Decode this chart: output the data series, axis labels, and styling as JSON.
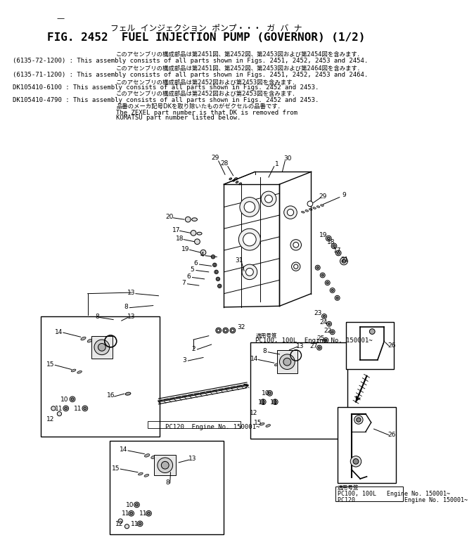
{
  "bg_color": "#ffffff",
  "dash": "—",
  "title_jp": "フェル  インジェクション  ポンプ・・・  ガ  バ  ナ",
  "title_en": "FIG. 2452  FUEL INJECTION PUMP (GOVERNOR) (1/2)",
  "note1_jp": "このアセンブリの構成部品は第2451図、第2452図、第2453図および第2454図を含みます．",
  "note1_en": "(6135-72-1200) : This assembly consists of all parts shown in Figs. 2451, 2452, 2453 and 2454.",
  "note2_jp": "このアセンブリの構成部品は第2451図、第2452図、第2453図および第2464図を含みます．",
  "note2_en": "(6135-71-1200) : This assembly consists of all parts shown in Figs. 2451, 2452, 2453 and 2464.",
  "note3_jp": "このアセンブリの構成部品は第2452図および第2453図を含みます．",
  "note3_en": "DK105410-6100 : This assembly consists of all parts shown in Figs. 2452 and 2453.",
  "note4_jp": "このアセンブリの構成部品は第2452図および第2453図を含みます．",
  "note4_en": "DK105410-4790 : This assembly consists of all parts shown in Figs. 2452 and 2453.",
  "note5_jp": "品番のメーカ記号DKを取り除いたものがゼクセルの品番です．",
  "note5_en1": "The ZEXEL part number is that DK is removed from",
  "note5_en2": "KOMATSU part number listed below.",
  "pc120_label": "PC120  Engine No. 150001~",
  "pc100_label": "適用号笪\nPC100, 100L  Engine No. 150001~",
  "bottom_right_label1": "PC100, 100L    Engine No. 150001~",
  "bottom_right_label2": "PC120             Engine No. 150001~",
  "tekiyo": "適用号笪"
}
